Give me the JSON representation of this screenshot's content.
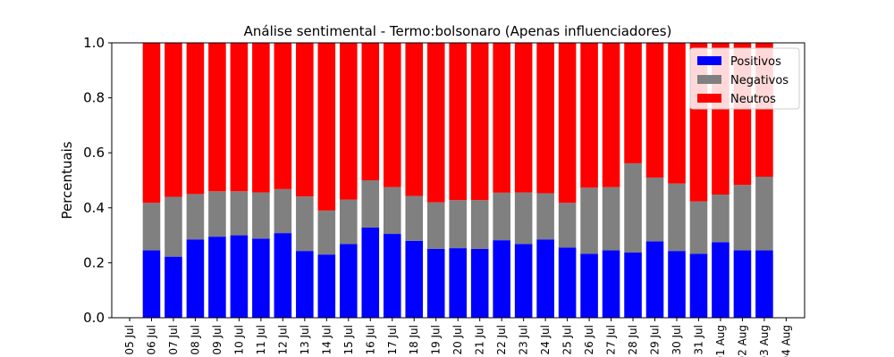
{
  "chart_data": {
    "type": "bar",
    "stacked": true,
    "title": "Análise sentimental - Termo:bolsonaro (Apenas influenciadores)",
    "xlabel": "",
    "ylabel": "Percentuais",
    "ylim": [
      0,
      1.0
    ],
    "yticks": [
      "0.0",
      "0.2",
      "0.4",
      "0.6",
      "0.8",
      "1.0"
    ],
    "grid": false,
    "legend_position": "top-right",
    "x_ticks": [
      "05 Jul",
      "06 Jul",
      "07 Jul",
      "08 Jul",
      "09 Jul",
      "10 Jul",
      "11 Jul",
      "12 Jul",
      "13 Jul",
      "14 Jul",
      "15 Jul",
      "16 Jul",
      "17 Jul",
      "18 Jul",
      "19 Jul",
      "20 Jul",
      "21 Jul",
      "22 Jul",
      "23 Jul",
      "24 Jul",
      "25 Jul",
      "26 Jul",
      "27 Jul",
      "28 Jul",
      "29 Jul",
      "30 Jul",
      "31 Jul",
      "01 Aug",
      "02 Aug",
      "03 Aug",
      "04 Aug"
    ],
    "categories": [
      "06 Jul",
      "07 Jul",
      "08 Jul",
      "09 Jul",
      "10 Jul",
      "11 Jul",
      "12 Jul",
      "13 Jul",
      "14 Jul",
      "15 Jul",
      "16 Jul",
      "17 Jul",
      "18 Jul",
      "19 Jul",
      "20 Jul",
      "21 Jul",
      "22 Jul",
      "23 Jul",
      "24 Jul",
      "25 Jul",
      "26 Jul",
      "27 Jul",
      "28 Jul",
      "29 Jul",
      "30 Jul",
      "31 Jul",
      "01 Aug",
      "02 Aug",
      "03 Aug"
    ],
    "series": [
      {
        "name": "Positivos",
        "color": "#0000ff",
        "values": [
          0.245,
          0.222,
          0.285,
          0.295,
          0.3,
          0.288,
          0.308,
          0.243,
          0.23,
          0.268,
          0.328,
          0.305,
          0.28,
          0.25,
          0.253,
          0.25,
          0.282,
          0.268,
          0.285,
          0.255,
          0.233,
          0.245,
          0.237,
          0.278,
          0.243,
          0.233,
          0.275,
          0.245,
          0.245
        ]
      },
      {
        "name": "Negativos",
        "color": "#808080",
        "values": [
          0.173,
          0.218,
          0.165,
          0.165,
          0.16,
          0.168,
          0.16,
          0.198,
          0.16,
          0.162,
          0.172,
          0.17,
          0.163,
          0.17,
          0.175,
          0.178,
          0.173,
          0.188,
          0.168,
          0.163,
          0.24,
          0.23,
          0.325,
          0.232,
          0.245,
          0.19,
          0.173,
          0.238,
          0.268
        ]
      },
      {
        "name": "Neutros",
        "color": "#ff0000",
        "values": [
          0.582,
          0.56,
          0.55,
          0.54,
          0.54,
          0.544,
          0.532,
          0.559,
          0.61,
          0.57,
          0.5,
          0.525,
          0.557,
          0.58,
          0.572,
          0.572,
          0.545,
          0.544,
          0.547,
          0.582,
          0.527,
          0.525,
          0.438,
          0.49,
          0.512,
          0.577,
          0.552,
          0.517,
          0.487
        ]
      }
    ]
  }
}
